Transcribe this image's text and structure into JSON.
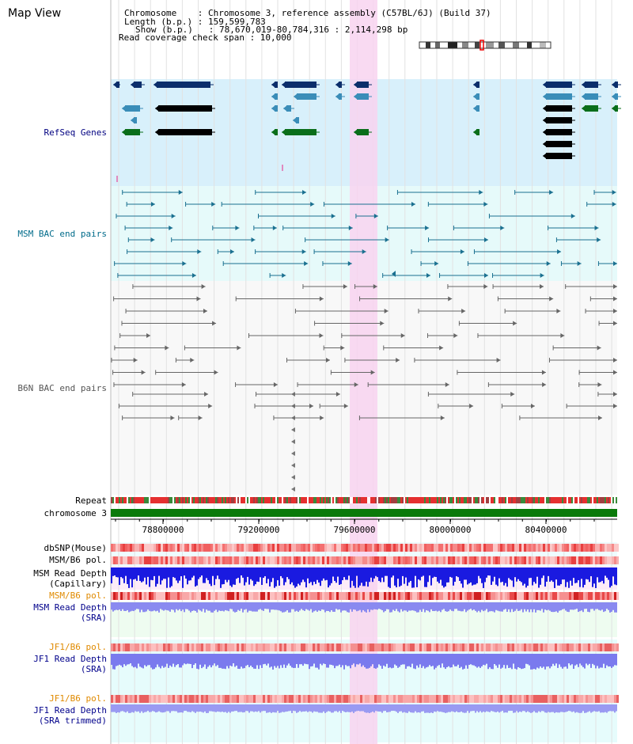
{
  "title": "Map View",
  "header": {
    "line1": "Chromosome    : Chromosome 3, reference assembly (C57BL/6J) (Build 37)",
    "line2": "Length (b.p.) : 159,599,783",
    "line3": "Show (b.p.)   : 78,670,019-80,784,316 : 2,114,298 bp",
    "line4": "Read coverage check span : 10,000"
  },
  "tracks": {
    "refseq": "RefSeq Genes",
    "msm_bac": "MSM BAC end pairs",
    "b6n_bac": "B6N BAC end pairs",
    "repeat": "Repeat",
    "chromosome": "chromosome 3",
    "dbsnp": "dbSNP(Mouse)",
    "msm_b6_pol": "MSM/B6 pol.",
    "msm_depth_cap_1": "MSM Read Depth",
    "msm_depth_cap_2": "(Capillary)",
    "msm_b6_pol2": "MSM/B6 pol.",
    "msm_depth_sra_1": "MSM Read Depth",
    "msm_depth_sra_2": "(SRA)",
    "jf1_b6_pol": "JF1/B6 pol.",
    "jf1_depth_1": "JF1 Read Depth",
    "jf1_depth_2": "(SRA)",
    "jf1_b6_pol2": "JF1/B6 pol.",
    "jf1_trim_1": "JF1 Read Depth",
    "jf1_trim_2": "(SRA trimmed)"
  },
  "axis_ticks": [
    "78800000",
    "79200000",
    "79600000",
    "80000000",
    "80400000"
  ],
  "colors": {
    "refseq_bg": "#d8f0fb",
    "refseq_label": "#000080",
    "msm_label": "#006b8a",
    "b6n_label": "#555555",
    "highlight": "#f8d3f0",
    "chromosome": "#0a7a0a",
    "pol_label": "#e08a00",
    "depth_label": "#00008b",
    "gene_dark": "#0b2e6b",
    "gene_mid": "#3a8db8",
    "gene_green": "#0a6e1a"
  }
}
